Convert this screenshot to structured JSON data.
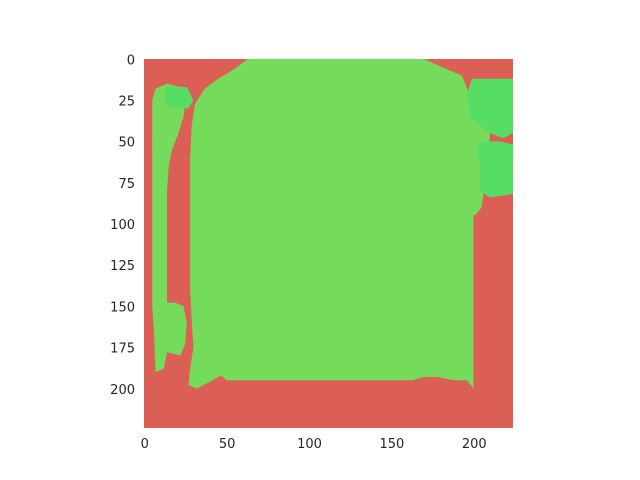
{
  "chart_data": {
    "type": "heatmap",
    "title": "",
    "xlabel": "",
    "ylabel": "",
    "xlim": [
      0,
      224
    ],
    "ylim": [
      224,
      0
    ],
    "grid": false,
    "image_size": [
      224,
      224
    ],
    "colors": {
      "background_class": "#dc5f55",
      "main_class": "#75db5a",
      "secondary_class": "#55de63"
    },
    "x_ticks": [
      0,
      50,
      100,
      150,
      200
    ],
    "y_ticks": [
      0,
      25,
      50,
      75,
      100,
      125,
      150,
      175,
      200
    ],
    "regions": [
      {
        "class": "main_class",
        "polygon": [
          [
            63,
            0
          ],
          [
            170,
            0
          ],
          [
            181,
            5
          ],
          [
            193,
            10
          ],
          [
            197,
            20
          ],
          [
            199,
            40
          ],
          [
            200,
            60
          ],
          [
            200,
            80
          ],
          [
            200,
            200
          ],
          [
            196,
            195
          ],
          [
            188,
            195
          ],
          [
            178,
            193
          ],
          [
            170,
            193
          ],
          [
            163,
            195
          ],
          [
            50,
            195
          ],
          [
            47,
            192
          ],
          [
            40,
            196
          ],
          [
            32,
            200
          ],
          [
            27,
            198
          ],
          [
            28,
            188
          ],
          [
            30,
            175
          ],
          [
            29,
            160
          ],
          [
            28,
            140
          ],
          [
            28,
            60
          ],
          [
            29,
            40
          ],
          [
            31,
            27
          ],
          [
            37,
            18
          ],
          [
            45,
            12
          ],
          [
            55,
            6
          ]
        ]
      },
      {
        "class": "main_class",
        "polygon": [
          [
            5,
            25
          ],
          [
            7,
            18
          ],
          [
            14,
            15
          ],
          [
            22,
            17
          ],
          [
            25,
            25
          ],
          [
            24,
            35
          ],
          [
            21,
            45
          ],
          [
            17,
            55
          ],
          [
            15,
            65
          ],
          [
            14,
            80
          ],
          [
            14,
            148
          ],
          [
            19,
            148
          ],
          [
            24,
            150
          ],
          [
            26,
            160
          ],
          [
            25,
            173
          ],
          [
            22,
            180
          ],
          [
            14,
            178
          ],
          [
            12,
            188
          ],
          [
            7,
            190
          ],
          [
            6,
            165
          ],
          [
            5,
            150
          ],
          [
            5,
            55
          ]
        ]
      },
      {
        "class": "main_class",
        "polygon": [
          [
            196,
            38
          ],
          [
            198,
            32
          ],
          [
            204,
            28
          ],
          [
            208,
            32
          ],
          [
            210,
            45
          ],
          [
            209,
            60
          ],
          [
            207,
            75
          ],
          [
            205,
            90
          ],
          [
            201,
            95
          ],
          [
            197,
            92
          ],
          [
            196,
            75
          ]
        ]
      },
      {
        "class": "main_class",
        "polygon": [
          [
            8,
            45
          ],
          [
            12,
            42
          ],
          [
            14,
            48
          ],
          [
            12,
            55
          ],
          [
            9,
            55
          ]
        ]
      },
      {
        "class": "secondary_class",
        "polygon": [
          [
            199,
            12
          ],
          [
            224,
            12
          ],
          [
            224,
            45
          ],
          [
            218,
            48
          ],
          [
            210,
            45
          ],
          [
            204,
            40
          ],
          [
            198,
            35
          ],
          [
            196,
            22
          ]
        ]
      },
      {
        "class": "secondary_class",
        "polygon": [
          [
            203,
            50
          ],
          [
            216,
            50
          ],
          [
            224,
            52
          ],
          [
            224,
            82
          ],
          [
            210,
            84
          ],
          [
            204,
            80
          ],
          [
            204,
            65
          ]
        ]
      },
      {
        "class": "secondary_class",
        "polygon": [
          [
            13,
            17
          ],
          [
            26,
            17
          ],
          [
            30,
            25
          ],
          [
            27,
            30
          ],
          [
            18,
            30
          ],
          [
            13,
            28
          ]
        ]
      },
      {
        "class": "secondary_class",
        "polygon": [
          [
            208,
            52
          ],
          [
            220,
            53
          ],
          [
            219,
            72
          ],
          [
            214,
            78
          ],
          [
            207,
            74
          ],
          [
            207,
            62
          ]
        ]
      }
    ]
  }
}
